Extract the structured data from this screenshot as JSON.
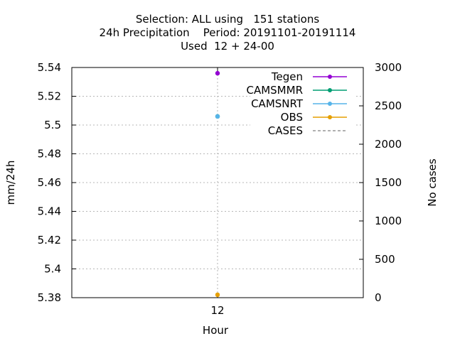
{
  "title_lines": [
    "Selection: ALL using   151 stations",
    "24h Precipitation    Period: 20191101-20191114",
    "Used  12 + 24-00"
  ],
  "chart_data": {
    "type": "scatter",
    "xlabel": "Hour",
    "ylabel": "mm/24h",
    "y2label": "No cases",
    "categories": [
      "12"
    ],
    "ylim": [
      5.38,
      5.54
    ],
    "y_ticks": [
      "5.38",
      "5.4",
      "5.42",
      "5.44",
      "5.46",
      "5.48",
      "5.5",
      "5.52",
      "5.54"
    ],
    "y2lim": [
      0,
      3000
    ],
    "y2_ticks": [
      "0",
      "500",
      "1000",
      "1500",
      "2000",
      "2500",
      "3000"
    ],
    "grid": true,
    "legend_position": "top-right",
    "series": [
      {
        "name": "Tegen",
        "color": "#9400d3",
        "style": "line-points",
        "values": [
          5.536
        ]
      },
      {
        "name": "CAMSMMR",
        "color": "#009e73",
        "style": "line-points",
        "values": [
          5.506
        ]
      },
      {
        "name": "CAMSNRT",
        "color": "#56b4e9",
        "style": "line-points",
        "values": [
          5.506
        ]
      },
      {
        "name": "OBS",
        "color": "#e69f00",
        "style": "line-points",
        "values": [
          5.382
        ]
      },
      {
        "name": "CASES",
        "color": "#808080",
        "style": "dashed",
        "axis": "y2",
        "values": [
          0
        ]
      }
    ]
  }
}
